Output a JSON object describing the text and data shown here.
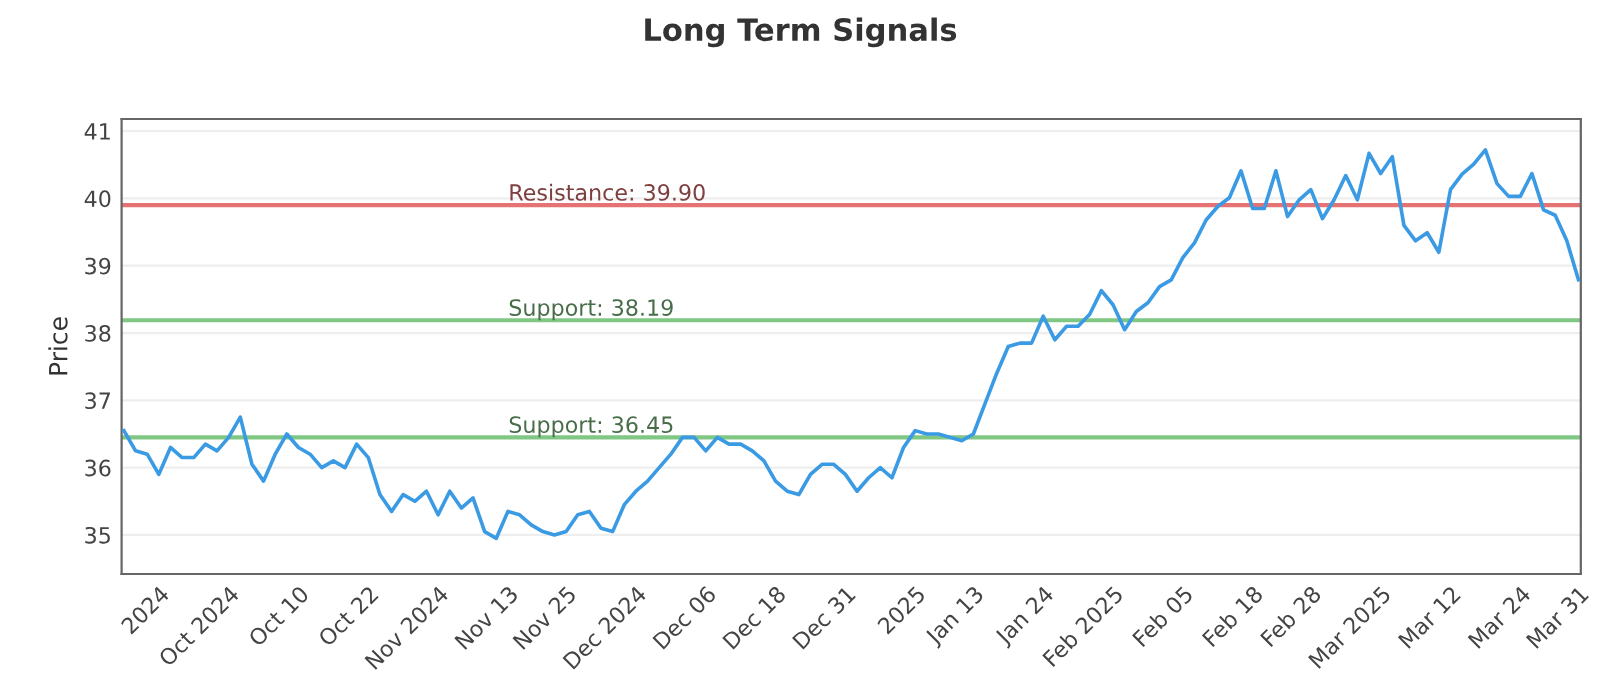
{
  "chart_data": {
    "type": "line",
    "title": "Long Term Signals",
    "ylabel": "Price",
    "categories": [
      null,
      null,
      null,
      "2024",
      null,
      null,
      null,
      null,
      null,
      "Oct 2024",
      null,
      null,
      null,
      null,
      null,
      "Oct 10",
      null,
      null,
      null,
      null,
      null,
      "Oct 22",
      null,
      null,
      null,
      null,
      null,
      "Nov 2024",
      null,
      null,
      null,
      null,
      null,
      "Nov 13",
      null,
      null,
      null,
      null,
      "Nov 25",
      null,
      null,
      null,
      null,
      null,
      "Dec 2024",
      null,
      null,
      null,
      null,
      null,
      "Dec 06",
      null,
      null,
      null,
      null,
      null,
      "Dec 18",
      null,
      null,
      null,
      null,
      null,
      "Dec 31",
      null,
      null,
      null,
      null,
      null,
      "2025",
      null,
      null,
      null,
      null,
      "Jan 13",
      null,
      null,
      null,
      null,
      null,
      "Jan 24",
      null,
      null,
      null,
      null,
      null,
      "Feb 2025",
      null,
      null,
      null,
      null,
      null,
      "Feb 05",
      null,
      null,
      null,
      null,
      null,
      "Feb 18",
      null,
      null,
      null,
      null,
      "Feb 28",
      null,
      null,
      null,
      null,
      null,
      "Mar 2025",
      null,
      null,
      null,
      null,
      null,
      "Mar 12",
      null,
      null,
      null,
      null,
      null,
      "Mar 24",
      null,
      null,
      null,
      null,
      "Mar 31"
    ],
    "series": [
      {
        "color": "#3a9be4",
        "values": [
          36.55,
          36.25,
          36.2,
          35.9,
          36.3,
          36.15,
          36.15,
          36.35,
          36.25,
          36.45,
          36.75,
          36.05,
          35.8,
          36.2,
          36.5,
          36.3,
          36.2,
          36.0,
          36.1,
          36.0,
          36.35,
          36.15,
          35.6,
          35.35,
          35.6,
          35.5,
          35.65,
          35.3,
          35.65,
          35.4,
          35.55,
          35.05,
          34.95,
          35.35,
          35.3,
          35.15,
          35.05,
          35.0,
          35.05,
          35.3,
          35.35,
          35.1,
          35.05,
          35.45,
          35.65,
          35.8,
          36.0,
          36.2,
          36.45,
          36.45,
          36.25,
          36.45,
          36.35,
          36.35,
          36.25,
          36.1,
          35.8,
          35.65,
          35.6,
          35.9,
          36.05,
          36.05,
          35.9,
          35.65,
          35.85,
          36.0,
          35.85,
          36.3,
          36.55,
          36.5,
          36.5,
          36.45,
          36.4,
          36.5,
          36.95,
          37.4,
          37.8,
          37.85,
          37.85,
          38.25,
          37.9,
          38.1,
          38.1,
          38.28,
          38.63,
          38.42,
          38.05,
          38.32,
          38.45,
          38.69,
          38.79,
          39.12,
          39.34,
          39.68,
          39.88,
          40.01,
          40.41,
          39.85,
          39.85,
          40.41,
          39.73,
          39.98,
          40.13,
          39.7,
          39.98,
          40.34,
          39.98,
          40.67,
          40.37,
          40.62,
          39.6,
          39.37,
          39.49,
          39.2,
          40.13,
          40.36,
          40.51,
          40.72,
          40.22,
          40.03,
          40.03,
          40.37,
          39.83,
          39.75,
          39.37,
          38.79
        ]
      }
    ],
    "ylim": [
      34.42,
      41.18
    ],
    "yticks": [
      35,
      36,
      37,
      38,
      39,
      40,
      41
    ],
    "grid": "y",
    "ref_lines": [
      {
        "axis": "y",
        "value": 39.9,
        "label": "Resistance: 39.90",
        "color": "#e57373"
      },
      {
        "axis": "y",
        "value": 38.19,
        "label": "Support: 38.19",
        "color": "#81c784"
      },
      {
        "axis": "y",
        "value": 36.45,
        "label": "Support: 36.45",
        "color": "#81c784"
      }
    ]
  }
}
